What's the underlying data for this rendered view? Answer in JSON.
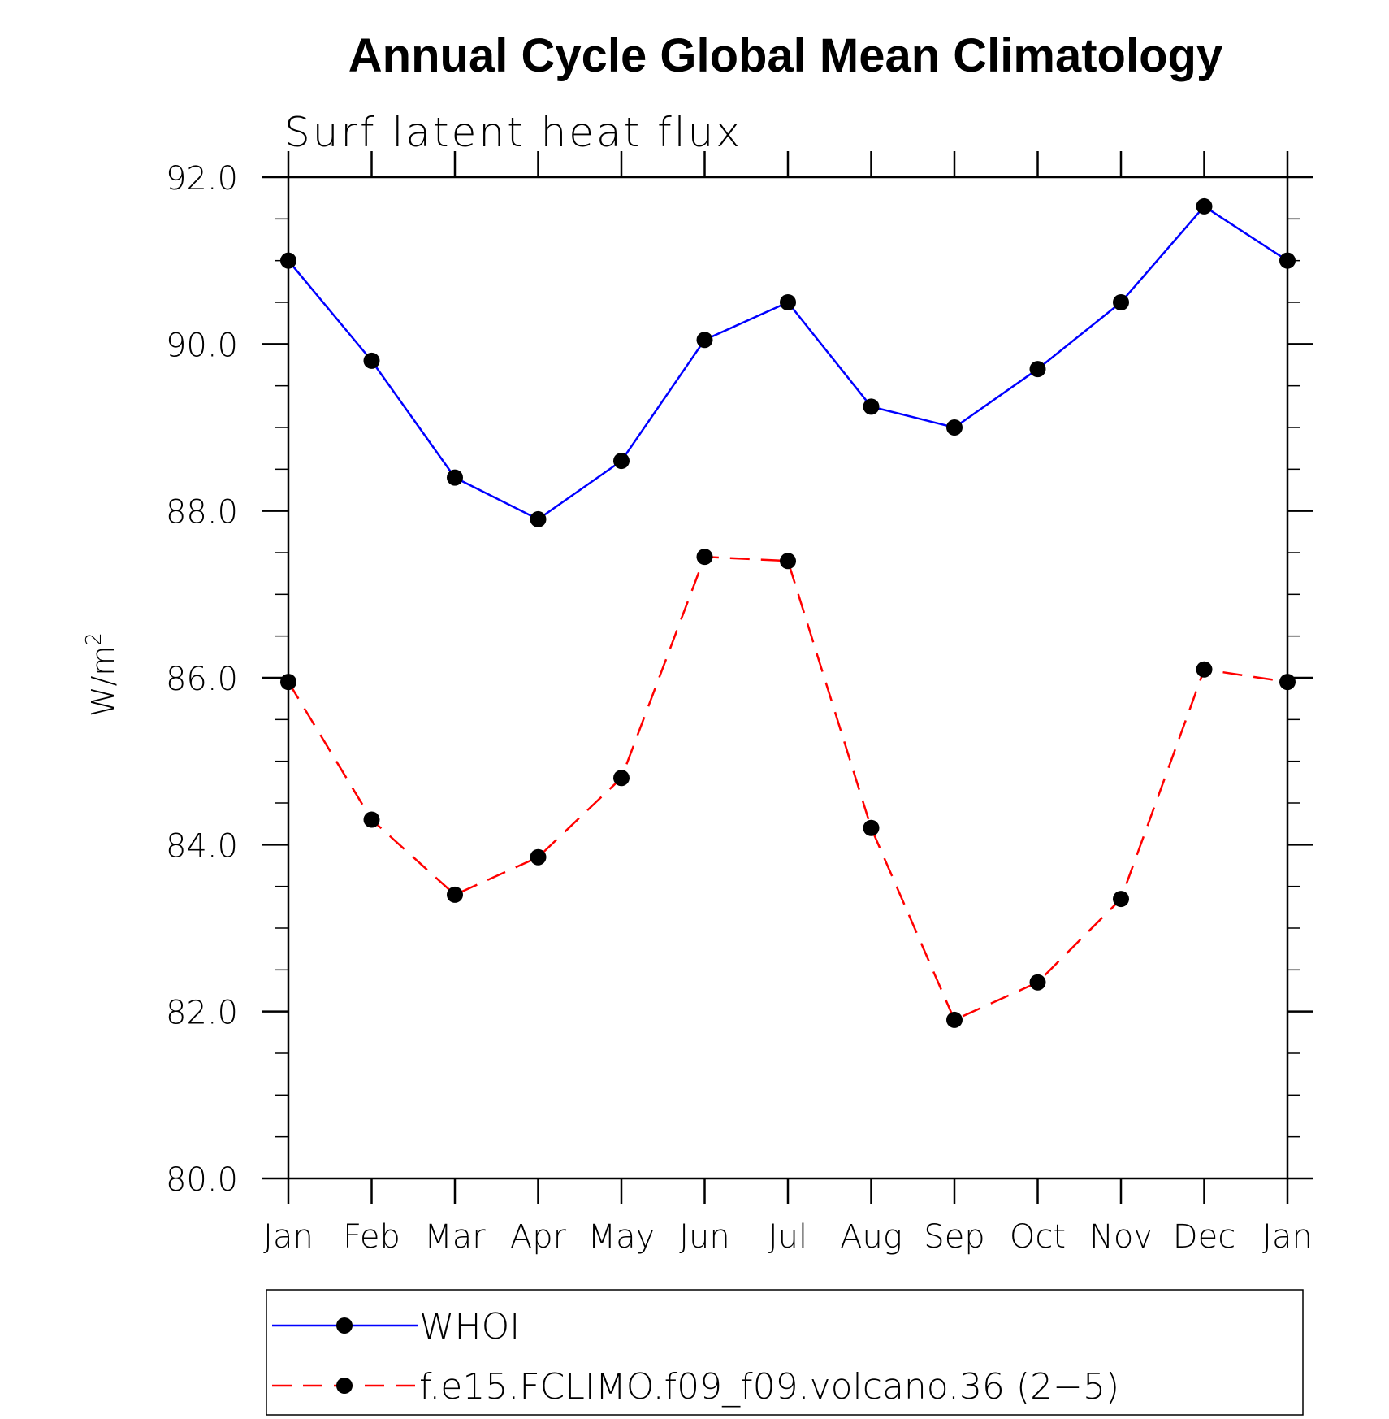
{
  "chart_data": {
    "type": "line",
    "title": "Annual Cycle Global Mean Climatology",
    "subtitle": "Surf latent heat flux",
    "ylabel": "W/m",
    "ylabel_sup": "2",
    "xlabel": "",
    "categories": [
      "Jan",
      "Feb",
      "Mar",
      "Apr",
      "May",
      "Jun",
      "Jul",
      "Aug",
      "Sep",
      "Oct",
      "Nov",
      "Dec",
      "Jan"
    ],
    "ylim": [
      80.0,
      92.0
    ],
    "yticks": [
      "80.0",
      "82.0",
      "84.0",
      "86.0",
      "88.0",
      "90.0",
      "92.0"
    ],
    "grid": false,
    "legend_position": "bottom",
    "series": [
      {
        "name": "WHOI",
        "color": "#0000ff",
        "dash": "solid",
        "marker": "filled-circle",
        "values": [
          91.0,
          89.8,
          88.4,
          87.9,
          88.6,
          90.05,
          90.5,
          89.25,
          89.0,
          89.7,
          90.5,
          91.65,
          91.0
        ]
      },
      {
        "name": "f.e15.FCLIMO.f09_f09.volcano.36 (2−5)",
        "color": "#ff0000",
        "dash": "dashed",
        "marker": "filled-circle",
        "values": [
          85.95,
          84.3,
          83.4,
          83.85,
          84.8,
          87.45,
          87.4,
          84.2,
          81.9,
          82.35,
          83.35,
          86.1,
          85.95
        ]
      }
    ]
  }
}
